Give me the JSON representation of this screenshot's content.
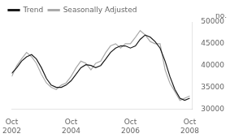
{
  "chart_data": {
    "type": "line",
    "ylabel": "no.",
    "x": [
      2002.75,
      2002.92,
      2003.08,
      2003.25,
      2003.42,
      2003.58,
      2003.75,
      2003.92,
      2004.08,
      2004.25,
      2004.42,
      2004.58,
      2004.75,
      2004.92,
      2005.08,
      2005.25,
      2005.42,
      2005.58,
      2005.75,
      2005.92,
      2006.08,
      2006.25,
      2006.42,
      2006.58,
      2006.75,
      2006.92,
      2007.08,
      2007.25,
      2007.42,
      2007.58,
      2007.75,
      2007.92,
      2008.08,
      2008.25,
      2008.42,
      2008.58,
      2008.75
    ],
    "series": [
      {
        "name": "Trend",
        "color": "#1a1a1a",
        "values": [
          38200,
          39500,
          41000,
          42000,
          42500,
          41500,
          39500,
          37000,
          35500,
          35000,
          35000,
          35500,
          36500,
          38000,
          39500,
          40200,
          40000,
          39500,
          40000,
          41500,
          43000,
          44000,
          44500,
          44500,
          44000,
          44500,
          46000,
          47000,
          46500,
          45500,
          44000,
          41000,
          37500,
          34500,
          32500,
          32000,
          32500
        ]
      },
      {
        "name": "Seasonally Adjusted",
        "color": "#aaaaaa",
        "values": [
          37500,
          40000,
          41500,
          43000,
          42000,
          40500,
          38000,
          36000,
          35000,
          34500,
          35500,
          36000,
          37500,
          39500,
          41000,
          40500,
          39000,
          40500,
          41000,
          43000,
          44500,
          45000,
          44000,
          45000,
          45000,
          46500,
          48000,
          47000,
          45500,
          45000,
          45000,
          39000,
          36000,
          34000,
          32000,
          32500,
          33000
        ]
      }
    ],
    "xlim": [
      2002.75,
      2008.83
    ],
    "xticks": [
      {
        "value": 2002.75,
        "label": "Oct\n2002"
      },
      {
        "value": 2004.75,
        "label": "Oct\n2004"
      },
      {
        "value": 2006.75,
        "label": "Oct\n2006"
      },
      {
        "value": 2008.75,
        "label": "Oct\n2008"
      }
    ],
    "ylim": [
      30000,
      50000
    ],
    "yticks": [
      30000,
      35000,
      40000,
      45000,
      50000
    ],
    "grid": false,
    "legend": "upper left"
  }
}
